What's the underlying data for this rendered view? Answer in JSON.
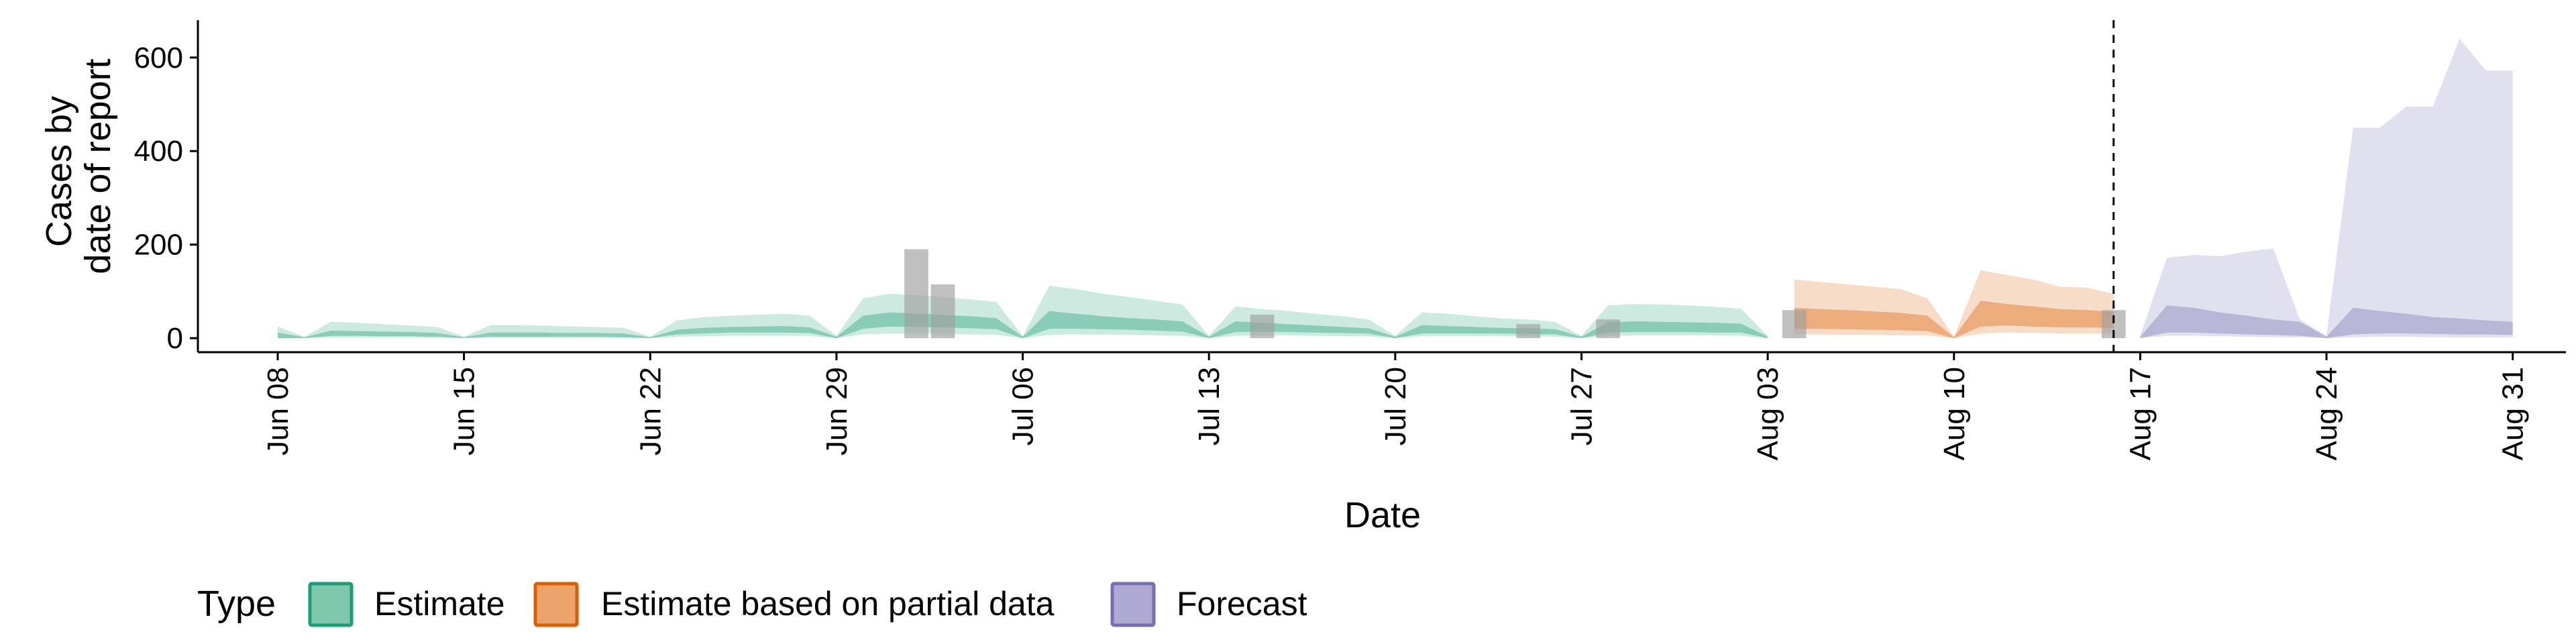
{
  "chart_data": {
    "type": "area",
    "xlabel": "Date",
    "ylabel_line1": "Cases by",
    "ylabel_line2": "date of report",
    "x_domain": [
      "2020-06-05",
      "2020-09-02"
    ],
    "ylim": [
      -30,
      680
    ],
    "y_ticks": [
      0,
      200,
      400,
      600
    ],
    "x_ticks": [
      {
        "date": "2020-06-08",
        "label": "Jun 08"
      },
      {
        "date": "2020-06-15",
        "label": "Jun 15"
      },
      {
        "date": "2020-06-22",
        "label": "Jun 22"
      },
      {
        "date": "2020-06-29",
        "label": "Jun 29"
      },
      {
        "date": "2020-07-06",
        "label": "Jul 06"
      },
      {
        "date": "2020-07-13",
        "label": "Jul 13"
      },
      {
        "date": "2020-07-20",
        "label": "Jul 20"
      },
      {
        "date": "2020-07-27",
        "label": "Jul 27"
      },
      {
        "date": "2020-08-03",
        "label": "Aug 03"
      },
      {
        "date": "2020-08-10",
        "label": "Aug 10"
      },
      {
        "date": "2020-08-17",
        "label": "Aug 17"
      },
      {
        "date": "2020-08-24",
        "label": "Aug 24"
      },
      {
        "date": "2020-08-31",
        "label": "Aug 31"
      }
    ],
    "vline_date": "2020-08-16",
    "grid": false,
    "legend_position": "bottom-left",
    "legend": {
      "title": "Type",
      "items": [
        {
          "label": "Estimate",
          "fill": "#7fc8ad",
          "stroke": "#1b9e77"
        },
        {
          "label": "Estimate based on partial data",
          "fill": "#eca46a",
          "stroke": "#d95f02"
        },
        {
          "label": "Forecast",
          "fill": "#aeaad4",
          "stroke": "#7570b3"
        }
      ]
    },
    "colors": {
      "estimate": "#1b9e77",
      "partial": "#d95f02",
      "forecast": "#7570b3",
      "observed": "#9e9e9e"
    },
    "observed_cases": [
      {
        "date": "2020-07-02",
        "value": 190
      },
      {
        "date": "2020-07-03",
        "value": 115
      },
      {
        "date": "2020-07-15",
        "value": 50
      },
      {
        "date": "2020-07-25",
        "value": 30
      },
      {
        "date": "2020-07-28",
        "value": 40
      },
      {
        "date": "2020-08-04",
        "value": 60
      },
      {
        "date": "2020-08-16",
        "value": 60
      }
    ],
    "series": [
      {
        "name": "Estimate",
        "key": "estimate",
        "dates": [
          "2020-06-08",
          "2020-06-09",
          "2020-06-10",
          "2020-06-11",
          "2020-06-12",
          "2020-06-13",
          "2020-06-14",
          "2020-06-15",
          "2020-06-16",
          "2020-06-17",
          "2020-06-18",
          "2020-06-19",
          "2020-06-20",
          "2020-06-21",
          "2020-06-22",
          "2020-06-23",
          "2020-06-24",
          "2020-06-25",
          "2020-06-26",
          "2020-06-27",
          "2020-06-28",
          "2020-06-29",
          "2020-06-30",
          "2020-07-01",
          "2020-07-02",
          "2020-07-03",
          "2020-07-04",
          "2020-07-05",
          "2020-07-06",
          "2020-07-07",
          "2020-07-08",
          "2020-07-09",
          "2020-07-10",
          "2020-07-11",
          "2020-07-12",
          "2020-07-13",
          "2020-07-14",
          "2020-07-15",
          "2020-07-16",
          "2020-07-17",
          "2020-07-18",
          "2020-07-19",
          "2020-07-20",
          "2020-07-21",
          "2020-07-22",
          "2020-07-23",
          "2020-07-24",
          "2020-07-25",
          "2020-07-26",
          "2020-07-27",
          "2020-07-28",
          "2020-07-29",
          "2020-07-30",
          "2020-07-31",
          "2020-08-01",
          "2020-08-02",
          "2020-08-03"
        ],
        "lower90": [
          0,
          0,
          2,
          2,
          2,
          2,
          1,
          0,
          1,
          1,
          1,
          1,
          1,
          1,
          0,
          3,
          4,
          5,
          5,
          5,
          5,
          0,
          8,
          10,
          10,
          9,
          8,
          7,
          0,
          7,
          8,
          8,
          7,
          6,
          5,
          0,
          5,
          6,
          6,
          5,
          4,
          4,
          0,
          4,
          4,
          4,
          4,
          4,
          3,
          0,
          5,
          6,
          6,
          6,
          6,
          5,
          0
        ],
        "upper90": [
          25,
          3,
          35,
          33,
          30,
          27,
          24,
          3,
          28,
          28,
          27,
          25,
          24,
          22,
          3,
          38,
          45,
          48,
          50,
          52,
          48,
          5,
          85,
          95,
          92,
          88,
          83,
          78,
          5,
          112,
          105,
          95,
          88,
          80,
          72,
          5,
          68,
          62,
          58,
          52,
          47,
          40,
          5,
          55,
          52,
          47,
          42,
          40,
          35,
          5,
          70,
          73,
          72,
          70,
          67,
          63,
          5
        ],
        "lower50": [
          0,
          0,
          5,
          5,
          4,
          4,
          3,
          0,
          3,
          3,
          3,
          3,
          3,
          2,
          0,
          8,
          10,
          12,
          12,
          12,
          11,
          0,
          20,
          25,
          24,
          23,
          21,
          19,
          0,
          20,
          20,
          19,
          18,
          16,
          14,
          0,
          13,
          14,
          13,
          12,
          11,
          10,
          0,
          10,
          10,
          10,
          10,
          9,
          8,
          0,
          12,
          13,
          13,
          13,
          12,
          12,
          0
        ],
        "upper50": [
          12,
          2,
          16,
          15,
          14,
          13,
          11,
          2,
          12,
          12,
          12,
          11,
          11,
          10,
          2,
          18,
          22,
          24,
          25,
          26,
          23,
          3,
          48,
          55,
          53,
          50,
          47,
          43,
          3,
          58,
          52,
          47,
          43,
          40,
          36,
          3,
          36,
          33,
          30,
          27,
          24,
          21,
          3,
          28,
          26,
          24,
          22,
          21,
          19,
          3,
          34,
          36,
          35,
          34,
          33,
          31,
          3
        ]
      },
      {
        "name": "Estimate based on partial data",
        "key": "partial",
        "dates": [
          "2020-08-04",
          "2020-08-05",
          "2020-08-06",
          "2020-08-07",
          "2020-08-08",
          "2020-08-09",
          "2020-08-10",
          "2020-08-11",
          "2020-08-12",
          "2020-08-13",
          "2020-08-14",
          "2020-08-15",
          "2020-08-16"
        ],
        "lower90": [
          8,
          8,
          7,
          7,
          6,
          6,
          0,
          10,
          12,
          11,
          10,
          10,
          10
        ],
        "upper90": [
          125,
          120,
          115,
          110,
          105,
          85,
          3,
          145,
          135,
          125,
          110,
          108,
          95
        ],
        "lower50": [
          20,
          20,
          19,
          18,
          17,
          15,
          0,
          25,
          27,
          25,
          23,
          23,
          22
        ],
        "upper50": [
          65,
          62,
          60,
          57,
          54,
          48,
          2,
          80,
          73,
          68,
          62,
          60,
          56
        ]
      },
      {
        "name": "Forecast",
        "key": "forecast",
        "dates": [
          "2020-08-17",
          "2020-08-18",
          "2020-08-19",
          "2020-08-20",
          "2020-08-21",
          "2020-08-22",
          "2020-08-23",
          "2020-08-24",
          "2020-08-25",
          "2020-08-26",
          "2020-08-27",
          "2020-08-28",
          "2020-08-29",
          "2020-08-30",
          "2020-08-31"
        ],
        "lower90": [
          0,
          5,
          5,
          4,
          3,
          2,
          2,
          0,
          2,
          3,
          3,
          2,
          2,
          2,
          2
        ],
        "upper90": [
          5,
          172,
          178,
          175,
          185,
          192,
          40,
          5,
          450,
          450,
          495,
          495,
          640,
          572,
          572
        ],
        "lower50": [
          0,
          12,
          12,
          10,
          8,
          7,
          5,
          0,
          8,
          10,
          10,
          9,
          8,
          8,
          7
        ],
        "upper50": [
          3,
          70,
          65,
          55,
          48,
          40,
          35,
          3,
          65,
          58,
          52,
          45,
          42,
          38,
          35
        ]
      }
    ]
  }
}
